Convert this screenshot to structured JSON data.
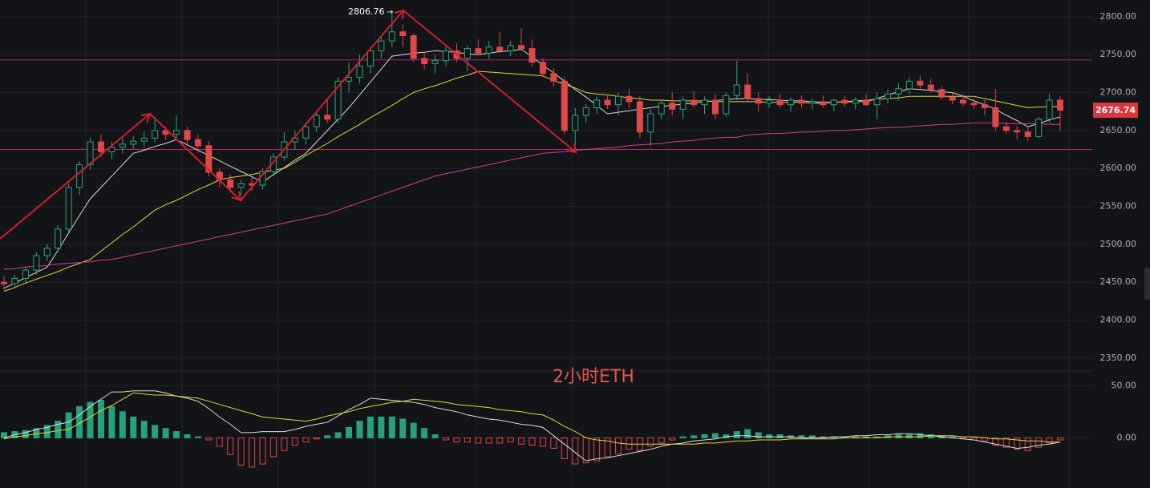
{
  "chart_data": [
    {
      "type": "candlestick",
      "annotation": "2小时ETH",
      "up_color": "#2ea47d",
      "down_color": "#e0464a",
      "ylim": [
        2333,
        2822
      ],
      "yticks": [
        {
          "value": 2350,
          "label": "2350.00"
        },
        {
          "value": 2400,
          "label": "2400.00"
        },
        {
          "value": 2450,
          "label": "2450.00"
        },
        {
          "value": 2500,
          "label": "2500.00"
        },
        {
          "value": 2550,
          "label": "2550.00"
        },
        {
          "value": 2600,
          "label": "2600.00"
        },
        {
          "value": 2650,
          "label": "2650.00"
        },
        {
          "value": 2700,
          "label": "2700.00"
        },
        {
          "value": 2750,
          "label": "2750.00"
        },
        {
          "value": 2800,
          "label": "2800.00"
        }
      ],
      "grid": true,
      "horizontal_lines": [
        2743,
        2625
      ],
      "horizontal_line_color": "#b0286f",
      "candles": [
        [
          2450,
          2458,
          2440,
          2448
        ],
        [
          2448,
          2460,
          2442,
          2455
        ],
        [
          2455,
          2470,
          2450,
          2466
        ],
        [
          2466,
          2490,
          2460,
          2485
        ],
        [
          2485,
          2500,
          2478,
          2495
        ],
        [
          2495,
          2525,
          2490,
          2520
        ],
        [
          2520,
          2580,
          2515,
          2575
        ],
        [
          2575,
          2610,
          2565,
          2605
        ],
        [
          2605,
          2640,
          2598,
          2635
        ],
        [
          2635,
          2645,
          2615,
          2622
        ],
        [
          2622,
          2635,
          2612,
          2628
        ],
        [
          2628,
          2640,
          2620,
          2632
        ],
        [
          2632,
          2642,
          2625,
          2636
        ],
        [
          2636,
          2648,
          2628,
          2640
        ],
        [
          2640,
          2668,
          2635,
          2650
        ],
        [
          2650,
          2655,
          2638,
          2645
        ],
        [
          2645,
          2670,
          2640,
          2650
        ],
        [
          2650,
          2655,
          2632,
          2638
        ],
        [
          2638,
          2645,
          2620,
          2630
        ],
        [
          2630,
          2636,
          2590,
          2595
        ],
        [
          2595,
          2600,
          2575,
          2585
        ],
        [
          2585,
          2592,
          2568,
          2575
        ],
        [
          2575,
          2585,
          2565,
          2580
        ],
        [
          2580,
          2588,
          2570,
          2578
        ],
        [
          2578,
          2600,
          2572,
          2596
        ],
        [
          2596,
          2620,
          2590,
          2615
        ],
        [
          2615,
          2648,
          2610,
          2635
        ],
        [
          2635,
          2650,
          2625,
          2640
        ],
        [
          2640,
          2660,
          2632,
          2655
        ],
        [
          2655,
          2675,
          2648,
          2670
        ],
        [
          2670,
          2690,
          2660,
          2665
        ],
        [
          2665,
          2720,
          2660,
          2715
        ],
        [
          2715,
          2740,
          2700,
          2720
        ],
        [
          2720,
          2750,
          2712,
          2735
        ],
        [
          2735,
          2760,
          2725,
          2755
        ],
        [
          2755,
          2775,
          2745,
          2768
        ],
        [
          2768,
          2806.76,
          2760,
          2780
        ],
        [
          2780,
          2790,
          2760,
          2775
        ],
        [
          2775,
          2778,
          2740,
          2745
        ],
        [
          2745,
          2752,
          2730,
          2738
        ],
        [
          2738,
          2750,
          2725,
          2742
        ],
        [
          2742,
          2760,
          2735,
          2755
        ],
        [
          2755,
          2765,
          2740,
          2745
        ],
        [
          2745,
          2762,
          2728,
          2758
        ],
        [
          2758,
          2770,
          2750,
          2752
        ],
        [
          2752,
          2768,
          2745,
          2760
        ],
        [
          2760,
          2780,
          2752,
          2755
        ],
        [
          2755,
          2768,
          2748,
          2762
        ],
        [
          2762,
          2785,
          2755,
          2758
        ],
        [
          2758,
          2770,
          2735,
          2740
        ],
        [
          2740,
          2745,
          2720,
          2725
        ],
        [
          2725,
          2732,
          2708,
          2715
        ],
        [
          2715,
          2720,
          2645,
          2650
        ],
        [
          2650,
          2680,
          2630,
          2670
        ],
        [
          2670,
          2685,
          2660,
          2680
        ],
        [
          2680,
          2695,
          2672,
          2690
        ],
        [
          2690,
          2698,
          2678,
          2684
        ],
        [
          2684,
          2700,
          2670,
          2695
        ],
        [
          2695,
          2705,
          2680,
          2688
        ],
        [
          2688,
          2695,
          2640,
          2648
        ],
        [
          2648,
          2678,
          2630,
          2672
        ],
        [
          2672,
          2690,
          2665,
          2686
        ],
        [
          2686,
          2700,
          2670,
          2678
        ],
        [
          2678,
          2695,
          2665,
          2690
        ],
        [
          2690,
          2702,
          2680,
          2684
        ],
        [
          2684,
          2695,
          2672,
          2690
        ],
        [
          2690,
          2698,
          2665,
          2672
        ],
        [
          2672,
          2700,
          2668,
          2696
        ],
        [
          2696,
          2742,
          2690,
          2710
        ],
        [
          2710,
          2725,
          2688,
          2692
        ],
        [
          2692,
          2700,
          2675,
          2686
        ],
        [
          2686,
          2695,
          2680,
          2690
        ],
        [
          2690,
          2698,
          2680,
          2684
        ],
        [
          2684,
          2694,
          2675,
          2690
        ],
        [
          2690,
          2696,
          2680,
          2686
        ],
        [
          2686,
          2692,
          2678,
          2688
        ],
        [
          2688,
          2696,
          2680,
          2684
        ],
        [
          2684,
          2692,
          2676,
          2690
        ],
        [
          2690,
          2696,
          2682,
          2686
        ],
        [
          2686,
          2694,
          2678,
          2690
        ],
        [
          2690,
          2698,
          2682,
          2684
        ],
        [
          2684,
          2700,
          2665,
          2692
        ],
        [
          2692,
          2704,
          2686,
          2698
        ],
        [
          2698,
          2712,
          2690,
          2705
        ],
        [
          2705,
          2720,
          2698,
          2715
        ],
        [
          2715,
          2722,
          2705,
          2710
        ],
        [
          2710,
          2718,
          2700,
          2704
        ],
        [
          2704,
          2708,
          2690,
          2694
        ],
        [
          2694,
          2700,
          2685,
          2690
        ],
        [
          2690,
          2698,
          2682,
          2686
        ],
        [
          2686,
          2692,
          2678,
          2684
        ],
        [
          2684,
          2690,
          2670,
          2680
        ],
        [
          2680,
          2705,
          2650,
          2655
        ],
        [
          2655,
          2662,
          2645,
          2650
        ],
        [
          2650,
          2656,
          2638,
          2648
        ],
        [
          2648,
          2654,
          2636,
          2642
        ],
        [
          2642,
          2668,
          2640,
          2665
        ],
        [
          2665,
          2698,
          2660,
          2690
        ],
        [
          2690,
          2695,
          2650,
          2676.74
        ]
      ],
      "series": [
        {
          "color": "#d9d9d9",
          "values": [
            2442,
            2449,
            2456,
            2463,
            2470,
            2492,
            2515,
            2538,
            2560,
            2575,
            2590,
            2605,
            2620,
            2624,
            2629,
            2633,
            2638,
            2631,
            2624,
            2617,
            2610,
            2603,
            2596,
            2589,
            2582,
            2592,
            2601,
            2611,
            2620,
            2635,
            2650,
            2665,
            2680,
            2697,
            2714,
            2731,
            2748,
            2750,
            2752,
            2753,
            2755,
            2754,
            2753,
            2751,
            2750,
            2752,
            2754,
            2755,
            2757,
            2747,
            2736,
            2726,
            2715,
            2704,
            2694,
            2683,
            2672,
            2674,
            2676,
            2678,
            2680,
            2682,
            2683,
            2685,
            2686,
            2688,
            2689,
            2691,
            2692,
            2692,
            2691,
            2691,
            2690,
            2689,
            2689,
            2688,
            2687,
            2687,
            2688,
            2688,
            2688,
            2692,
            2697,
            2701,
            2705,
            2704,
            2703,
            2701,
            2700,
            2695,
            2689,
            2684,
            2678,
            2670,
            2663,
            2655,
            2659,
            2664,
            2668
          ]
        },
        {
          "color": "#e6d33a",
          "values": [
            2438,
            2443,
            2449,
            2454,
            2459,
            2464,
            2470,
            2475,
            2480,
            2491,
            2502,
            2513,
            2523,
            2534,
            2545,
            2552,
            2558,
            2565,
            2572,
            2578,
            2585,
            2588,
            2590,
            2592,
            2595,
            2598,
            2600,
            2608,
            2617,
            2625,
            2633,
            2642,
            2650,
            2658,
            2667,
            2675,
            2683,
            2692,
            2700,
            2705,
            2709,
            2714,
            2719,
            2723,
            2728,
            2727,
            2726,
            2725,
            2724,
            2723,
            2722,
            2716,
            2711,
            2706,
            2700,
            2698,
            2697,
            2695,
            2693,
            2692,
            2690,
            2690,
            2689,
            2689,
            2689,
            2689,
            2688,
            2688,
            2688,
            2688,
            2688,
            2687,
            2687,
            2687,
            2687,
            2686,
            2686,
            2687,
            2688,
            2689,
            2690,
            2691,
            2692,
            2693,
            2695,
            2695,
            2695,
            2695,
            2695,
            2695,
            2695,
            2692,
            2689,
            2686,
            2683,
            2680,
            2681,
            2681,
            2682
          ]
        },
        {
          "color": "#d23a9b",
          "values": [
            2467,
            2468,
            2470,
            2471,
            2472,
            2474,
            2475,
            2476,
            2477,
            2479,
            2480,
            2483,
            2486,
            2489,
            2492,
            2495,
            2498,
            2501,
            2504,
            2507,
            2510,
            2513,
            2516,
            2519,
            2522,
            2525,
            2528,
            2531,
            2534,
            2537,
            2540,
            2545,
            2550,
            2555,
            2560,
            2565,
            2570,
            2575,
            2580,
            2585,
            2590,
            2593,
            2596,
            2599,
            2602,
            2605,
            2608,
            2611,
            2614,
            2617,
            2620,
            2621,
            2622,
            2624,
            2625,
            2626,
            2627,
            2628,
            2630,
            2631,
            2632,
            2633,
            2635,
            2636,
            2637,
            2639,
            2640,
            2641,
            2641,
            2644,
            2645,
            2646,
            2646,
            2647,
            2648,
            2648,
            2649,
            2650,
            2650,
            2651,
            2652,
            2653,
            2654,
            2654,
            2655,
            2656,
            2657,
            2658,
            2658,
            2659,
            2660,
            2660,
            2660,
            2659,
            2659,
            2659,
            2659,
            2658,
            2658
          ]
        }
      ]
    },
    {
      "type": "macd",
      "ylim": [
        -48,
        64
      ],
      "yticks": [
        {
          "value": 50,
          "label": "50.00"
        },
        {
          "value": 0,
          "label": "0.00"
        }
      ],
      "grid": true,
      "up_color": "#26a17b",
      "down_color": "#e0464a",
      "values": [
        5,
        6,
        7,
        9,
        12,
        16,
        24,
        30,
        34,
        36,
        30,
        25,
        20,
        16,
        12,
        9,
        6,
        3,
        1,
        -2,
        -8,
        -16,
        -26,
        -28,
        -25,
        -18,
        -12,
        -7,
        -4,
        -1,
        2,
        5,
        10,
        16,
        20,
        20,
        20,
        18,
        14,
        9,
        3,
        -2,
        -4,
        -4,
        -5,
        -5,
        -5,
        -4,
        -6,
        -7,
        -8,
        -10,
        -20,
        -25,
        -24,
        -22,
        -18,
        -15,
        -11,
        -12,
        -8,
        -5,
        -2,
        1,
        2,
        3,
        4,
        3,
        6,
        8,
        5,
        3,
        3,
        2,
        2,
        2,
        1,
        1,
        1,
        1,
        1,
        1,
        2,
        3,
        3,
        4,
        3,
        2,
        1,
        -1,
        -2,
        -3,
        -7,
        -9,
        -11,
        -12,
        -9,
        -5,
        -2
      ],
      "series": [
        {
          "color": "#d9d9d9",
          "values": [
            0,
            3,
            5,
            8,
            10,
            13,
            15,
            22,
            30,
            37,
            44,
            44,
            45,
            45,
            45,
            43,
            40,
            38,
            35,
            28,
            20,
            13,
            5,
            5,
            6,
            6,
            6,
            8,
            11,
            13,
            15,
            21,
            27,
            32,
            38,
            37,
            36,
            35,
            34,
            32,
            29,
            27,
            25,
            22,
            20,
            18,
            17,
            15,
            13,
            12,
            10,
            2,
            -6,
            -14,
            -22,
            -20,
            -19,
            -17,
            -15,
            -13,
            -11,
            -8,
            -6,
            -5,
            -3,
            -2,
            -1,
            1,
            2,
            2,
            1,
            1,
            1,
            1,
            0,
            0,
            0,
            1,
            1,
            2,
            2,
            3,
            3,
            4,
            4,
            3,
            2,
            1,
            0,
            -1,
            -2,
            -4,
            -6,
            -8,
            -10,
            -9,
            -7,
            -6,
            -4
          ]
        },
        {
          "color": "#e6d33a",
          "values": [
            -1,
            1,
            2,
            4,
            5,
            7,
            8,
            14,
            20,
            26,
            31,
            37,
            43,
            42,
            41,
            41,
            40,
            39,
            38,
            35,
            32,
            29,
            26,
            23,
            20,
            19,
            18,
            17,
            16,
            18,
            21,
            23,
            25,
            28,
            30,
            32,
            34,
            35,
            37,
            36,
            35,
            34,
            32,
            31,
            30,
            29,
            27,
            26,
            25,
            23,
            22,
            17,
            11,
            6,
            0,
            -2,
            -3,
            -5,
            -6,
            -6,
            -6,
            -6,
            -6,
            -6,
            -6,
            -5,
            -5,
            -4,
            -3,
            -3,
            -2,
            -2,
            -2,
            -1,
            -1,
            -1,
            -1,
            -1,
            0,
            0,
            0,
            0,
            1,
            1,
            1,
            1,
            2,
            2,
            2,
            1,
            1,
            0,
            -1,
            -1,
            -2,
            -3,
            -3,
            -4,
            -4
          ]
        }
      ]
    }
  ]
}
